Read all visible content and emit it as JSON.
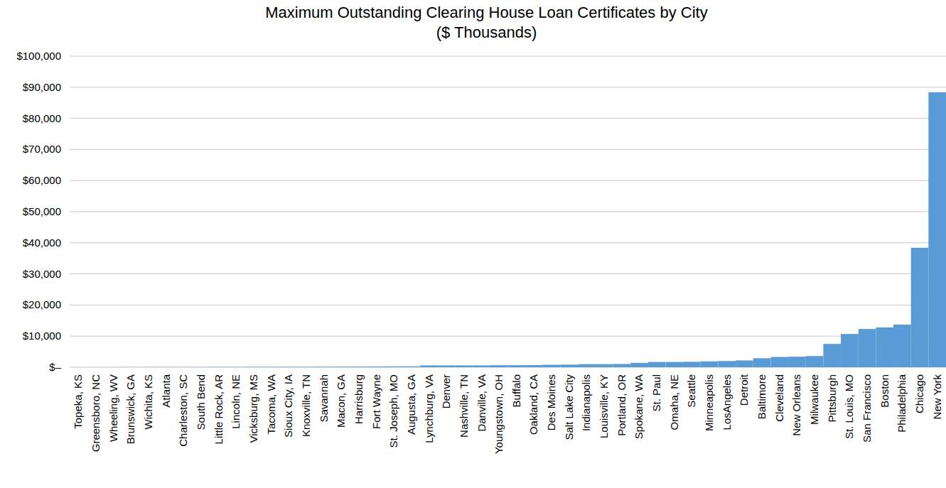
{
  "chart_data": {
    "type": "bar",
    "title": "Maximum Outstanding Clearing House Loan Certificates by City",
    "subtitle": "($ Thousands)",
    "categories": [
      "Topeka, KS",
      "Greensboro, NC",
      "Wheeling, WV",
      "Brunswick, GA",
      "Wichita, KS",
      "Atlanta",
      "Charleston, SC",
      "South Bend",
      "Little Rock, AR",
      "Lincoln, NE",
      "Vicksburg, MS",
      "Tacoma, WA",
      "Sioux City, IA",
      "Knoxville, TN",
      "Savannah",
      "Macon, GA",
      "Harrisburg",
      "Fort Wayne",
      "St. Joseph, MO",
      "Augusta, GA",
      "Lynchburg, VA",
      "Denver",
      "Nashville, TN",
      "Danville, VA",
      "Youngstown, OH",
      "Buffalo",
      "Oakland, CA",
      "Des Moines",
      "Salt Lake City",
      "Indianapolis",
      "Louisville, KY",
      "Portland, OR",
      "Spokane, WA",
      "St. Paul",
      "Omaha, NE",
      "Seattle",
      "Minneapolis",
      "LosAngeles",
      "Detroit",
      "Baltimore",
      "Cleveland",
      "New Orleans",
      "Milwaukee",
      "Pittsburgh",
      "St. Louis, MO",
      "San Francisco",
      "Boston",
      "Philadelphia",
      "Chicago",
      "New York"
    ],
    "values": [
      10,
      20,
      30,
      40,
      50,
      60,
      70,
      80,
      100,
      110,
      120,
      130,
      150,
      160,
      180,
      200,
      220,
      250,
      280,
      300,
      600,
      600,
      600,
      600,
      650,
      650,
      700,
      800,
      850,
      1000,
      1000,
      1050,
      1400,
      1700,
      1700,
      1750,
      1900,
      2000,
      2200,
      2900,
      3300,
      3400,
      3600,
      7500,
      10700,
      12300,
      12800,
      13700,
      38400,
      88400
    ],
    "color": "#5b9bd5",
    "ylim": [
      0,
      100000
    ],
    "yticks": [
      {
        "value": 0,
        "label": "$–"
      },
      {
        "value": 10000,
        "label": "$10,000"
      },
      {
        "value": 20000,
        "label": "$20,000"
      },
      {
        "value": 30000,
        "label": "$30,000"
      },
      {
        "value": 40000,
        "label": "$40,000"
      },
      {
        "value": 50000,
        "label": "$50,000"
      },
      {
        "value": 60000,
        "label": "$60,000"
      },
      {
        "value": 70000,
        "label": "$70,000"
      },
      {
        "value": 80000,
        "label": "$80,000"
      },
      {
        "value": 90000,
        "label": "$90,000"
      },
      {
        "value": 100000,
        "label": "$100,000"
      }
    ],
    "grid": true
  }
}
